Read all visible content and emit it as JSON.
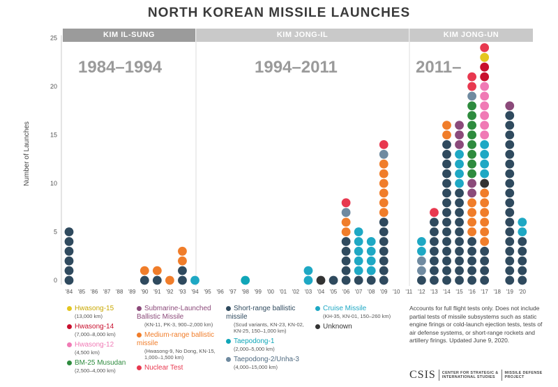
{
  "title": "NORTH KOREAN MISSILE LAUNCHES",
  "eras": [
    {
      "label": "KIM IL-SUNG",
      "range": "1984–1994",
      "color": "#9b9b9b"
    },
    {
      "label": "KIM JONG-IL",
      "range": "1994–2011",
      "color": "#c9c9c9"
    },
    {
      "label": "KIM JONG-UN",
      "range": "2011–",
      "color": "#c9c9c9"
    }
  ],
  "legend": [
    {
      "key": "hw15",
      "name": "Hwasong-15",
      "sub": "(13,000 km)",
      "color": "#e4c61f"
    },
    {
      "key": "hw14",
      "name": "Hwasong-14",
      "sub": "(7,000–8,000 km)",
      "color": "#c8102e"
    },
    {
      "key": "hw12",
      "name": "Hwasong-12",
      "sub": "(4,500 km)",
      "color": "#f07ab5"
    },
    {
      "key": "bm25",
      "name": "BM-25 Musudan",
      "sub": "(2,500–4,000 km)",
      "color": "#2e8b3e"
    },
    {
      "key": "slbm",
      "name": "Submarine-Launched Ballistic Missile",
      "sub": "(KN-11, PK-3, 900–2,000 km)",
      "color": "#8b4a7a"
    },
    {
      "key": "mrbm",
      "name": "Medium-range ballistic missile",
      "sub": "(Hwasong-9, No Dong, KN-15, 1,000–1,500 km)",
      "color": "#f07d2a"
    },
    {
      "key": "nuke",
      "name": "Nuclear Test",
      "sub": "",
      "color": "#e8384f"
    },
    {
      "key": "srbm",
      "name": "Short-range ballistic missile",
      "sub": "(Scud variants, KN-23, KN-02, KN-25, 150–1,000 km)",
      "color": "#2f4a5e"
    },
    {
      "key": "tpd1",
      "name": "Taepodong-1",
      "sub": "(2,000–5,000 km)",
      "color": "#10a6b8"
    },
    {
      "key": "tpd2",
      "name": "Taepodong-2/Unha-3",
      "sub": "(4,000–15,000 km)",
      "color": "#6f8aa0"
    },
    {
      "key": "cruise",
      "name": "Cruise Missile",
      "sub": "(KH-35, KN-01, 150–260 km)",
      "color": "#1ea8c4"
    },
    {
      "key": "unknown",
      "name": "Unknown",
      "sub": "",
      "color": "#333333"
    }
  ],
  "note": "Accounts for full flight tests only. Does not include partial tests of missile subsystems such as static engine firings or cold-launch ejection tests, tests of air defense systems, or short-range rockets and artillery firings. Updated June 9, 2020.",
  "logo": {
    "text": "CSIS",
    "org_line1": "CENTER FOR STRATEGIC &",
    "org_line2": "INTERNATIONAL STUDIES",
    "proj_line1": "MISSILE DEFENSE",
    "proj_line2": "PROJECT"
  },
  "chart_data": {
    "type": "bar",
    "title": "NORTH KOREAN MISSILE LAUNCHES",
    "ylabel": "Number of Launches",
    "xlabel": "",
    "ylim": [
      0,
      25
    ],
    "yticks": [
      0,
      5,
      10,
      15,
      20,
      25
    ],
    "grid": false,
    "categories": [
      "'84",
      "'85",
      "'86",
      "'87",
      "'88",
      "'89",
      "'90",
      "'91",
      "'92",
      "'93",
      "'94",
      "'95",
      "'96",
      "'97",
      "'98",
      "'99",
      "'00",
      "'01",
      "'02",
      "'03",
      "'04",
      "'05",
      "'06",
      "'07",
      "'08",
      "'09",
      "'10",
      "'11",
      "'12",
      "'13",
      "'14",
      "'15",
      "'16",
      "'17",
      "'18",
      "'19",
      "'20"
    ],
    "stacks": [
      {
        "year": "'84",
        "segments": [
          [
            "srbm",
            6
          ]
        ]
      },
      {
        "year": "'90",
        "segments": [
          [
            "srbm",
            1
          ],
          [
            "mrbm",
            1
          ]
        ]
      },
      {
        "year": "'91",
        "segments": [
          [
            "srbm",
            1
          ],
          [
            "mrbm",
            1
          ]
        ]
      },
      {
        "year": "'92",
        "segments": [
          [
            "mrbm",
            1
          ]
        ]
      },
      {
        "year": "'93",
        "segments": [
          [
            "srbm",
            2
          ],
          [
            "mrbm",
            2
          ]
        ]
      },
      {
        "year": "'94",
        "segments": [
          [
            "cruise",
            1
          ]
        ]
      },
      {
        "year": "'98",
        "segments": [
          [
            "tpd1",
            1
          ]
        ]
      },
      {
        "year": "'03",
        "segments": [
          [
            "cruise",
            2
          ],
          [
            "srbm",
            0
          ]
        ]
      },
      {
        "year": "'04",
        "segments": [
          [
            "unknown",
            1
          ]
        ]
      },
      {
        "year": "'05",
        "segments": [
          [
            "srbm",
            1
          ]
        ]
      },
      {
        "year": "'06",
        "segments": [
          [
            "srbm",
            5
          ],
          [
            "mrbm",
            2
          ],
          [
            "tpd2",
            1
          ],
          [
            "nuke",
            1
          ]
        ]
      },
      {
        "year": "'07",
        "segments": [
          [
            "srbm",
            1
          ],
          [
            "cruise",
            5
          ]
        ]
      },
      {
        "year": "'08",
        "segments": [
          [
            "srbm",
            1
          ],
          [
            "cruise",
            4
          ]
        ]
      },
      {
        "year": "'09",
        "segments": [
          [
            "srbm",
            7
          ],
          [
            "mrbm",
            6
          ],
          [
            "tpd2",
            1
          ],
          [
            "nuke",
            1
          ]
        ]
      },
      {
        "year": "'12",
        "segments": [
          [
            "srbm",
            1
          ],
          [
            "tpd2",
            2
          ],
          [
            "cruise",
            2
          ]
        ]
      },
      {
        "year": "'13",
        "segments": [
          [
            "srbm",
            7
          ],
          [
            "nuke",
            1
          ]
        ]
      },
      {
        "year": "'14",
        "segments": [
          [
            "srbm",
            15
          ],
          [
            "mrbm",
            2
          ]
        ]
      },
      {
        "year": "'15",
        "segments": [
          [
            "srbm",
            10
          ],
          [
            "cruise",
            4
          ],
          [
            "slbm",
            3
          ]
        ]
      },
      {
        "year": "'16",
        "segments": [
          [
            "srbm",
            5
          ],
          [
            "mrbm",
            4
          ],
          [
            "slbm",
            2
          ],
          [
            "bm25",
            8
          ],
          [
            "tpd2",
            1
          ],
          [
            "nuke",
            2
          ]
        ]
      },
      {
        "year": "'17",
        "segments": [
          [
            "srbm",
            4
          ],
          [
            "mrbm",
            6
          ],
          [
            "unknown",
            1
          ],
          [
            "cruise",
            4
          ],
          [
            "hw12",
            6
          ],
          [
            "hw14",
            2
          ],
          [
            "hw15",
            1
          ],
          [
            "nuke",
            1
          ]
        ]
      },
      {
        "year": "'19",
        "segments": [
          [
            "srbm",
            18
          ],
          [
            "slbm",
            1
          ]
        ]
      },
      {
        "year": "'20",
        "segments": [
          [
            "srbm",
            5
          ],
          [
            "cruise",
            2
          ]
        ]
      }
    ]
  }
}
